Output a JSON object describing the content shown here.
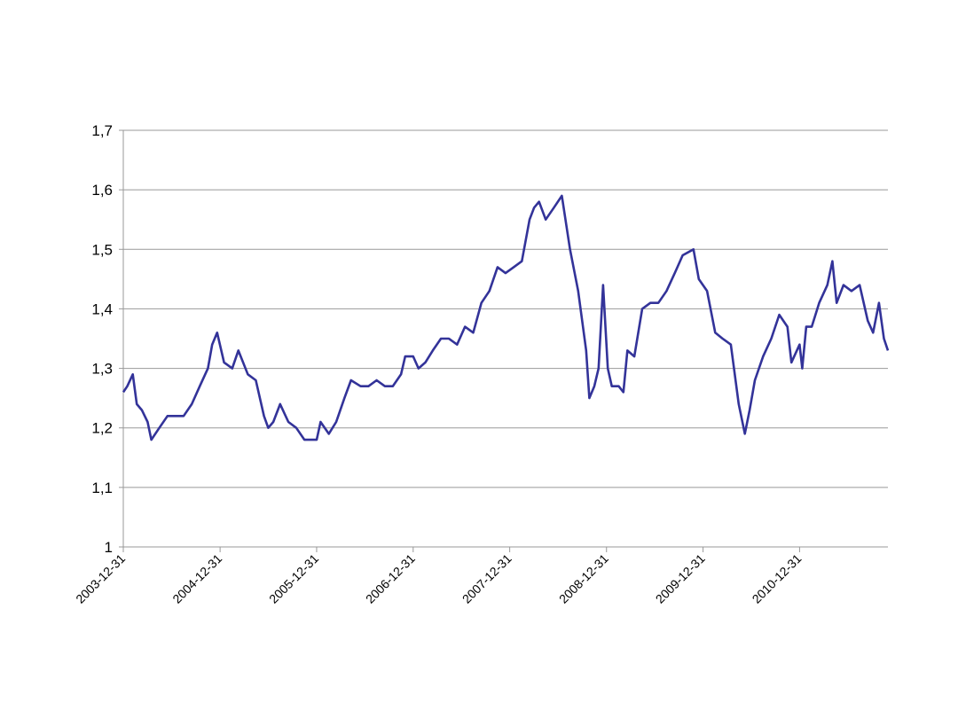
{
  "chart_data": {
    "type": "line",
    "title": "",
    "xlabel": "",
    "ylabel": "",
    "ylim": [
      1.0,
      1.7
    ],
    "xlim": [
      "2003-12-31",
      "2011-11-30"
    ],
    "grid": "horizontal",
    "legend": "none",
    "y_ticks": [
      "1",
      "1,1",
      "1,2",
      "1,3",
      "1,4",
      "1,5",
      "1,6",
      "1,7"
    ],
    "y_tick_values": [
      1.0,
      1.1,
      1.2,
      1.3,
      1.4,
      1.5,
      1.6,
      1.7
    ],
    "x_ticks": [
      "2003-12-31",
      "2004-12-31",
      "2005-12-31",
      "2006-12-31",
      "2007-12-31",
      "2008-12-31",
      "2009-12-31",
      "2010-12-31"
    ],
    "colors": {
      "line": "#333399",
      "grid": "#999999",
      "axis": "#999999"
    },
    "series": [
      {
        "x": [
          "2003-12-31",
          "2004-01-15",
          "2004-02-05",
          "2004-02-20",
          "2004-03-10",
          "2004-04-01",
          "2004-04-15",
          "2004-05-15",
          "2004-06-15",
          "2004-07-15",
          "2004-08-15",
          "2004-09-15",
          "2004-10-15",
          "2004-11-15",
          "2004-12-01",
          "2004-12-20",
          "2005-01-15",
          "2005-02-15",
          "2005-03-10",
          "2005-04-15",
          "2005-05-15",
          "2005-06-15",
          "2005-07-01",
          "2005-07-20",
          "2005-08-15",
          "2005-09-15",
          "2005-10-15",
          "2005-11-15",
          "2005-12-01",
          "2005-12-31",
          "2006-01-15",
          "2006-02-15",
          "2006-03-15",
          "2006-04-15",
          "2006-05-10",
          "2006-06-15",
          "2006-07-15",
          "2006-08-15",
          "2006-09-15",
          "2006-10-15",
          "2006-11-15",
          "2006-12-01",
          "2006-12-31",
          "2007-01-20",
          "2007-02-15",
          "2007-03-15",
          "2007-04-15",
          "2007-05-15",
          "2007-06-15",
          "2007-07-15",
          "2007-08-15",
          "2007-09-15",
          "2007-10-15",
          "2007-11-15",
          "2007-12-15",
          "2008-01-15",
          "2008-02-15",
          "2008-03-15",
          "2008-04-01",
          "2008-04-20",
          "2008-05-15",
          "2008-06-15",
          "2008-07-15",
          "2008-08-15",
          "2008-09-15",
          "2008-10-15",
          "2008-10-27",
          "2008-11-15",
          "2008-12-01",
          "2008-12-18",
          "2009-01-05",
          "2009-01-20",
          "2009-02-15",
          "2009-03-05",
          "2009-03-20",
          "2009-04-15",
          "2009-05-15",
          "2009-06-15",
          "2009-07-15",
          "2009-08-15",
          "2009-09-15",
          "2009-10-15",
          "2009-11-25",
          "2009-12-15",
          "2010-01-15",
          "2010-02-15",
          "2010-03-15",
          "2010-04-15",
          "2010-05-15",
          "2010-06-07",
          "2010-06-25",
          "2010-07-15",
          "2010-08-15",
          "2010-09-15",
          "2010-10-15",
          "2010-11-15",
          "2010-11-30",
          "2010-12-31",
          "2011-01-10",
          "2011-01-25",
          "2011-02-15",
          "2011-03-15",
          "2011-04-15",
          "2011-05-04",
          "2011-05-20",
          "2011-06-15",
          "2011-07-15",
          "2011-08-15",
          "2011-09-15",
          "2011-10-05",
          "2011-10-27",
          "2011-11-15",
          "2011-11-30"
        ],
        "values": [
          1.26,
          1.27,
          1.29,
          1.24,
          1.23,
          1.21,
          1.18,
          1.2,
          1.22,
          1.22,
          1.22,
          1.24,
          1.27,
          1.3,
          1.34,
          1.36,
          1.31,
          1.3,
          1.33,
          1.29,
          1.28,
          1.22,
          1.2,
          1.21,
          1.24,
          1.21,
          1.2,
          1.18,
          1.18,
          1.18,
          1.21,
          1.19,
          1.21,
          1.25,
          1.28,
          1.27,
          1.27,
          1.28,
          1.27,
          1.27,
          1.29,
          1.32,
          1.32,
          1.3,
          1.31,
          1.33,
          1.35,
          1.35,
          1.34,
          1.37,
          1.36,
          1.41,
          1.43,
          1.47,
          1.46,
          1.47,
          1.48,
          1.55,
          1.57,
          1.58,
          1.55,
          1.57,
          1.59,
          1.5,
          1.43,
          1.33,
          1.25,
          1.27,
          1.3,
          1.44,
          1.3,
          1.27,
          1.27,
          1.26,
          1.33,
          1.32,
          1.4,
          1.41,
          1.41,
          1.43,
          1.46,
          1.49,
          1.5,
          1.45,
          1.43,
          1.36,
          1.35,
          1.34,
          1.24,
          1.19,
          1.23,
          1.28,
          1.32,
          1.35,
          1.39,
          1.37,
          1.31,
          1.34,
          1.3,
          1.37,
          1.37,
          1.41,
          1.44,
          1.48,
          1.41,
          1.44,
          1.43,
          1.44,
          1.38,
          1.36,
          1.41,
          1.35,
          1.33
        ]
      }
    ]
  }
}
